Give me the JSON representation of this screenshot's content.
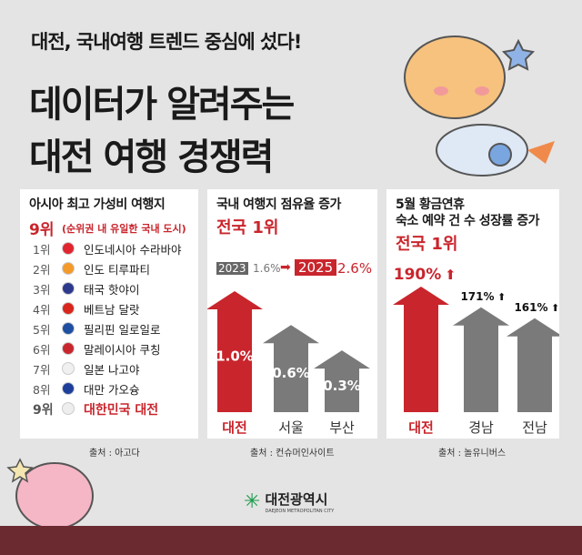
{
  "header": {
    "subtitle": "대전, 국내여행 트렌드 중심에 섰다!",
    "title_line1": "데이터가 알려주는",
    "title_line2": "대전 여행 경쟁력"
  },
  "panel1": {
    "title": "아시아 최고 가성비 여행지",
    "rank": "9위",
    "rank_note": "(순위권 내 유일한 국내 도시)",
    "items": [
      {
        "rank": "1위",
        "city": "인도네시아 수라바야",
        "flag": "#e0252f"
      },
      {
        "rank": "2위",
        "city": "인도 티루파티",
        "flag": "#f39a2b"
      },
      {
        "rank": "3위",
        "city": "태국 핫야이",
        "flag": "#2d3a8c"
      },
      {
        "rank": "4위",
        "city": "베트남 달랏",
        "flag": "#d8261d"
      },
      {
        "rank": "5위",
        "city": "필리핀 일로일로",
        "flag": "#1e4fa0"
      },
      {
        "rank": "6위",
        "city": "말레이시아 쿠칭",
        "flag": "#c8262d"
      },
      {
        "rank": "7위",
        "city": "일본 나고야",
        "flag": "#f0f0f0"
      },
      {
        "rank": "8위",
        "city": "대만 가오슝",
        "flag": "#1d3f9a"
      },
      {
        "rank": "9위",
        "city": "대한민국 대전",
        "flag": "#eeeeee"
      }
    ],
    "source": "출처 : 아고다"
  },
  "panel2": {
    "title": "국내 여행지 점유율 증가",
    "headline": "전국 1위",
    "year_from": "2023",
    "value_from": "1.6%",
    "year_to": "2025",
    "value_to": "2.6%",
    "source": "출처 : 컨슈머인사이트"
  },
  "panel3": {
    "title_line1": "5월 황금연휴",
    "title_line2": "숙소 예약 건 수 성장률 증가",
    "headline": "전국 1위",
    "source": "출처 : 놀유니버스"
  },
  "chart_data": [
    {
      "type": "bar",
      "categories": [
        "대전",
        "서울",
        "부산"
      ],
      "values": [
        1.0,
        0.6,
        0.3
      ],
      "labels": [
        "1.0%",
        "0.6%",
        "0.3%"
      ],
      "colors": [
        "#c9252c",
        "#7a7a7a",
        "#7a7a7a"
      ]
    },
    {
      "type": "bar",
      "categories": [
        "대전",
        "경남",
        "전남"
      ],
      "values": [
        190,
        171,
        161
      ],
      "labels": [
        "190%",
        "171%",
        "161%"
      ],
      "colors": [
        "#c9252c",
        "#7a7a7a",
        "#7a7a7a"
      ]
    }
  ],
  "logo": {
    "name": "대전광역시",
    "sub": "DAEJEON METROPOLITAN CITY"
  },
  "colors": {
    "accent": "#c9252c",
    "bar_gray": "#7a7a7a",
    "background": "#e4e4e4",
    "footer": "#6b2a30"
  }
}
